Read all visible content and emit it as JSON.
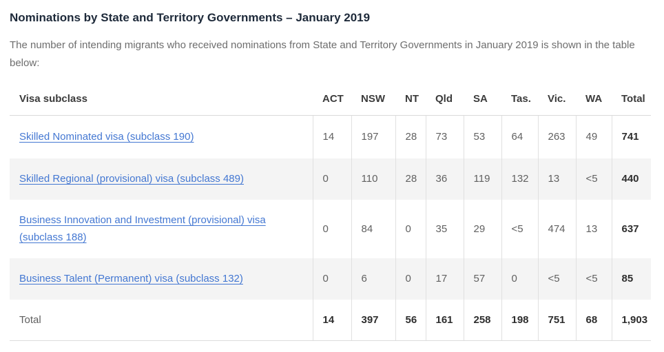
{
  "page": {
    "title": "Nominations by State and Territory Governments – January 2019",
    "intro": "The number of intending migrants who received nominations from State and Territory Governments in January 2019 is shown in the table below:"
  },
  "table": {
    "row_header_label": "Visa subclass",
    "columns": [
      "ACT",
      "NSW",
      "NT",
      "Qld",
      "SA",
      "Tas.",
      "Vic.",
      "WA",
      "Total"
    ],
    "rows": [
      {
        "label": "Skilled Nominated visa (subclass 190)",
        "values": [
          "14",
          "197",
          "28",
          "73",
          "53",
          "64",
          "263",
          "49"
        ],
        "total": "741"
      },
      {
        "label": "Skilled Regional (provisional) visa (subclass 489)",
        "values": [
          "0",
          "110",
          "28",
          "36",
          "119",
          "132",
          "13",
          "<5"
        ],
        "total": "440"
      },
      {
        "label": "Business Innovation and Investment (provisional) visa (subclass 188)",
        "values": [
          "0",
          "84",
          "0",
          "35",
          "29",
          "<5",
          "474",
          "13"
        ],
        "total": "637"
      },
      {
        "label": "Business Talent (Permanent) visa (subclass 132)",
        "values": [
          "0",
          "6",
          "0",
          "17",
          "57",
          "0",
          "<5",
          "<5"
        ],
        "total": "85"
      }
    ],
    "total_row": {
      "label": "Total",
      "values": [
        "14",
        "397",
        "56",
        "161",
        "258",
        "198",
        "751",
        "68"
      ],
      "total": "1,903"
    }
  },
  "colors": {
    "title_text": "#1e2a3a",
    "body_text": "#6d6d6d",
    "link": "#4377d2",
    "stripe_row_background": "#f4f4f4",
    "table_border": "#e0e0e0"
  }
}
